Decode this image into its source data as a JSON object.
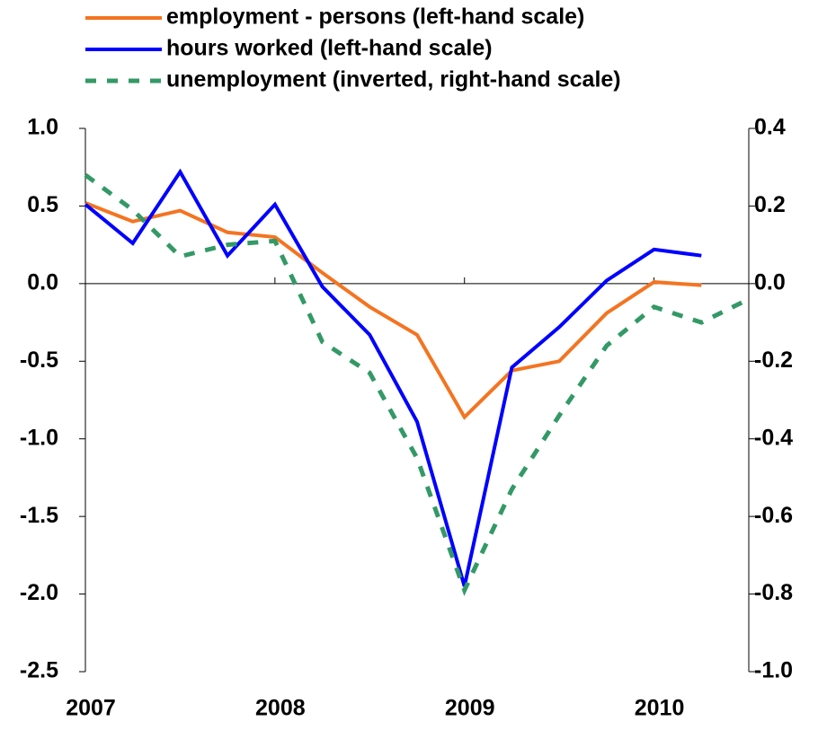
{
  "chart_data": {
    "type": "line",
    "x": [
      2007,
      2007.25,
      2007.5,
      2007.75,
      2008,
      2008.25,
      2008.5,
      2008.75,
      2009,
      2009.25,
      2009.5,
      2009.75,
      2010,
      2010.25,
      2010.5
    ],
    "series": [
      {
        "name": "employment - persons (left-hand scale)",
        "color": "#f47421",
        "style": "solid",
        "axis": "y",
        "values": [
          0.52,
          0.4,
          0.47,
          0.33,
          0.3,
          0.07,
          -0.15,
          -0.33,
          -0.86,
          -0.56,
          -0.5,
          -0.19,
          0.01,
          -0.01,
          null
        ]
      },
      {
        "name": "hours worked (left-hand scale)",
        "color": "#0000ff",
        "style": "solid",
        "axis": "y",
        "values": [
          0.51,
          0.26,
          0.72,
          0.18,
          0.51,
          -0.02,
          -0.33,
          -0.89,
          -1.95,
          -0.54,
          -0.28,
          0.02,
          0.22,
          0.18,
          null
        ]
      },
      {
        "name": "unemployment (inverted, right-hand scale)",
        "color": "#339966",
        "style": "dashed",
        "axis": "y2",
        "values": [
          0.28,
          0.19,
          0.07,
          0.1,
          0.11,
          -0.15,
          -0.23,
          -0.45,
          -0.79,
          -0.53,
          -0.34,
          -0.16,
          -0.06,
          -0.1,
          -0.04
        ]
      }
    ],
    "xlim": [
      2007,
      2010.5
    ],
    "xticks": [
      2007,
      2008,
      2009,
      2010
    ],
    "ylim": [
      -2.5,
      1.0
    ],
    "yticks": [
      {
        "value": 1,
        "label": "1.0"
      },
      0.5,
      {
        "value": 0,
        "label": "0.0"
      },
      -0.5,
      {
        "value": -1,
        "label": "-1.0"
      },
      -1.5,
      {
        "value": -2,
        "label": "-2.0"
      },
      -2.5
    ],
    "y2lim": [
      -1.0,
      0.4
    ],
    "y2ticks": [
      0.4,
      0.2,
      {
        "value": 0,
        "label": "0.0"
      },
      -0.2,
      -0.4,
      -0.6,
      -0.8,
      {
        "value": -1,
        "label": "-1.0"
      }
    ]
  }
}
